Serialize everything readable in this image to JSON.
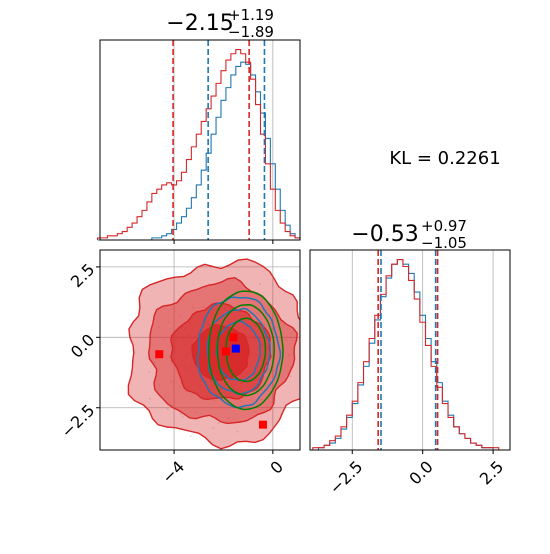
{
  "chart_data": [
    {
      "panel": "top-left histogram",
      "type": "histogram",
      "title": {
        "main": "−2.15",
        "sup": "+1.19",
        "sub": "−1.89"
      },
      "xlim": [
        -7.0,
        1.1
      ],
      "grid": true,
      "bin_centers": [
        -7.0,
        -6.8,
        -6.6,
        -6.4,
        -6.2,
        -6.0,
        -5.8,
        -5.6,
        -5.4,
        -5.2,
        -5.0,
        -4.8,
        -4.6,
        -4.4,
        -4.2,
        -4.0,
        -3.8,
        -3.6,
        -3.4,
        -3.2,
        -3.0,
        -2.8,
        -2.6,
        -2.4,
        -2.2,
        -2.0,
        -1.8,
        -1.6,
        -1.4,
        -1.2,
        -1.0,
        -0.8,
        -0.6,
        -0.4,
        -0.2,
        0.0,
        0.2,
        0.4,
        0.6,
        0.8,
        1.0
      ],
      "series": [
        {
          "color": "#1f77b4",
          "values": [
            0,
            0,
            0,
            0,
            0,
            0,
            0,
            0,
            0,
            0,
            0,
            1,
            1,
            2,
            3,
            5,
            8,
            11,
            15,
            20,
            26,
            33,
            41,
            50,
            58,
            66,
            72,
            78,
            82,
            84,
            83,
            78,
            70,
            60,
            48,
            36,
            24,
            14,
            7,
            3,
            1
          ]
        },
        {
          "color": "#d62728",
          "values": [
            1,
            1,
            2,
            2,
            3,
            4,
            6,
            8,
            11,
            14,
            18,
            22,
            24,
            26,
            27,
            26,
            28,
            32,
            38,
            44,
            50,
            56,
            62,
            68,
            74,
            80,
            85,
            88,
            90,
            88,
            84,
            76,
            64,
            50,
            36,
            24,
            14,
            8,
            4,
            2,
            1
          ]
        }
      ],
      "quantile_lines": [
        {
          "color": "#1f77b4",
          "values": [
            -2.62,
            -0.34
          ]
        },
        {
          "color": "#d62728",
          "values": [
            -4.04,
            -0.96
          ]
        }
      ],
      "xticks": [
        -4,
        0
      ]
    },
    {
      "panel": "bottom-right histogram",
      "type": "histogram",
      "title": {
        "main": "−0.53",
        "sup": "+0.97",
        "sub": "−1.05"
      },
      "xlim": [
        -4.0,
        3.1
      ],
      "grid": true,
      "bin_centers": [
        -3.8,
        -3.6,
        -3.4,
        -3.2,
        -3.0,
        -2.8,
        -2.6,
        -2.4,
        -2.2,
        -2.0,
        -1.8,
        -1.6,
        -1.4,
        -1.2,
        -1.0,
        -0.8,
        -0.6,
        -0.4,
        -0.2,
        0.0,
        0.2,
        0.4,
        0.6,
        0.8,
        1.0,
        1.2,
        1.4,
        1.6,
        1.8,
        2.0,
        2.2,
        2.4,
        2.6,
        2.8,
        3.0
      ],
      "series": [
        {
          "color": "#1f77b4",
          "values": [
            0,
            1,
            2,
            3,
            5,
            9,
            14,
            20,
            28,
            36,
            46,
            56,
            66,
            74,
            80,
            82,
            80,
            76,
            68,
            58,
            48,
            38,
            29,
            21,
            15,
            10,
            7,
            5,
            3,
            2,
            1,
            1,
            0,
            0,
            0
          ]
        },
        {
          "color": "#d62728",
          "values": [
            1,
            1,
            2,
            4,
            6,
            10,
            15,
            21,
            29,
            38,
            48,
            58,
            67,
            75,
            80,
            82,
            79,
            73,
            65,
            55,
            45,
            36,
            27,
            20,
            14,
            10,
            7,
            5,
            3,
            2,
            1,
            1,
            1,
            0,
            0
          ]
        }
      ],
      "quantile_lines": [
        {
          "color": "#1f77b4",
          "values": [
            -1.48,
            0.46
          ]
        },
        {
          "color": "#d62728",
          "values": [
            -1.58,
            0.53
          ]
        }
      ],
      "xticks": [
        -2.5,
        0.0,
        2.5
      ],
      "xticklabels": [
        "−2.5",
        "0.0",
        "2.5"
      ]
    },
    {
      "panel": "bottom-left 2D density",
      "type": "contour",
      "xlim": [
        -7.0,
        1.1
      ],
      "ylim": [
        -4.0,
        3.1
      ],
      "xticks": [
        -4,
        0
      ],
      "xticklabels": [
        "−4",
        "0"
      ],
      "yticks": [
        2.5,
        0.0,
        -2.5
      ],
      "yticklabels": [
        "2.5",
        "0.0",
        "−2.5"
      ],
      "grid": true,
      "series": [
        {
          "color": "#d62728",
          "center": [
            -2.1,
            -0.55
          ],
          "spread": [
            1.9,
            1.6
          ]
        },
        {
          "color": "#1f77b4",
          "center": [
            -1.4,
            -0.5
          ],
          "spread": [
            1.1,
            1.3
          ]
        },
        {
          "color": "#008000",
          "center": [
            -1.1,
            -0.45
          ],
          "spread": [
            1.0,
            1.4
          ]
        }
      ],
      "markers": [
        {
          "color": "#ff0000",
          "shape": "square",
          "x": -4.6,
          "y": -0.6
        },
        {
          "color": "#ff0000",
          "shape": "square",
          "x": -1.6,
          "y": 0.0
        },
        {
          "color": "#ff0000",
          "shape": "square",
          "x": -1.9,
          "y": -0.5
        },
        {
          "color": "#ff0000",
          "shape": "square",
          "x": -0.4,
          "y": -3.1
        },
        {
          "color": "#0000ff",
          "shape": "square",
          "x": -1.5,
          "y": -0.4
        }
      ]
    }
  ],
  "kl_text": "KL = 0.2261",
  "colors": {
    "blue": "#1f77b4",
    "red": "#d62728",
    "green": "#008000",
    "grid": "#b0b0b0"
  }
}
